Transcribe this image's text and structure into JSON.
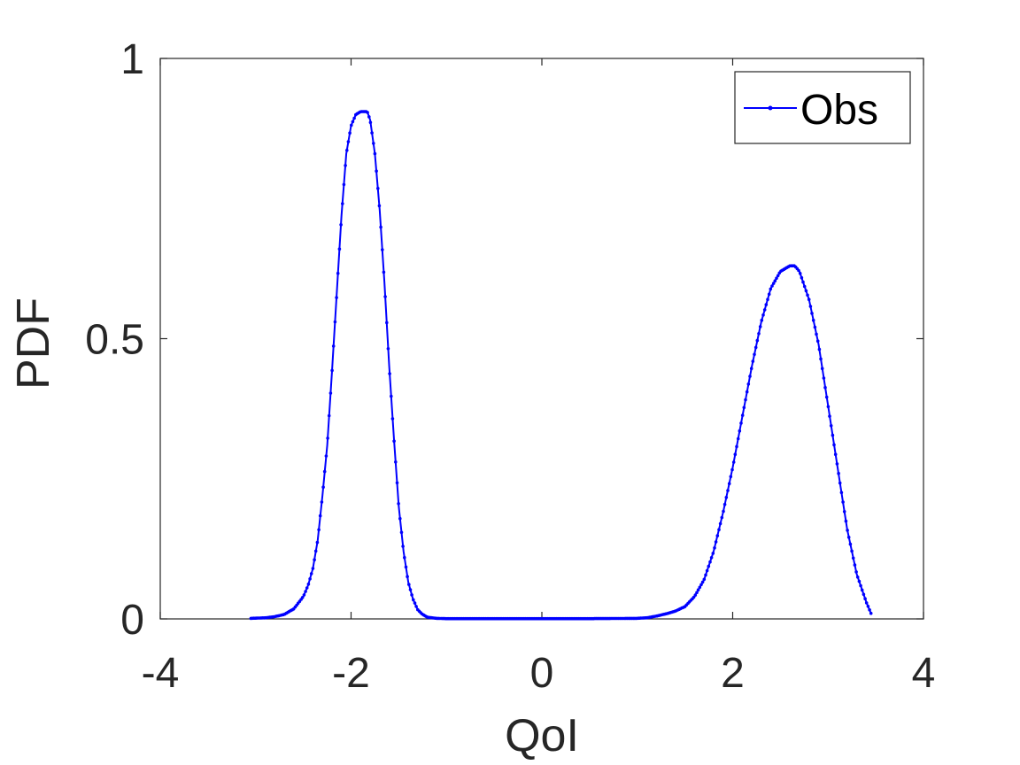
{
  "chart_data": {
    "type": "line",
    "xlabel": "QoI",
    "ylabel": "PDF",
    "xlim": [
      -4,
      4
    ],
    "ylim": [
      0,
      1
    ],
    "xticks": [
      -4,
      -2,
      0,
      2,
      4
    ],
    "xtick_labels": [
      "-4",
      "-2",
      "0",
      "2",
      "4"
    ],
    "yticks": [
      0,
      0.5,
      1
    ],
    "ytick_labels": [
      "0",
      "0.5",
      "1"
    ],
    "grid": false,
    "legend_position": "top-right",
    "colors": {
      "series": "#0000ff",
      "axes": "#262626"
    },
    "series": [
      {
        "name": "Obs",
        "marker": "dot",
        "x": [
          -3.05,
          -2.9,
          -2.8,
          -2.7,
          -2.6,
          -2.5,
          -2.45,
          -2.4,
          -2.35,
          -2.3,
          -2.25,
          -2.2,
          -2.15,
          -2.1,
          -2.05,
          -2.0,
          -1.95,
          -1.9,
          -1.85,
          -1.83,
          -1.8,
          -1.75,
          -1.7,
          -1.65,
          -1.6,
          -1.55,
          -1.5,
          -1.45,
          -1.4,
          -1.35,
          -1.3,
          -1.25,
          -1.2,
          -1.1,
          -1.0,
          -0.5,
          0.0,
          0.5,
          1.0,
          1.1,
          1.2,
          1.3,
          1.4,
          1.5,
          1.6,
          1.7,
          1.8,
          1.9,
          2.0,
          2.1,
          2.2,
          2.3,
          2.4,
          2.5,
          2.6,
          2.65,
          2.7,
          2.8,
          2.9,
          3.0,
          3.1,
          3.2,
          3.3,
          3.4,
          3.45
        ],
        "y": [
          0.001,
          0.002,
          0.004,
          0.008,
          0.018,
          0.04,
          0.06,
          0.09,
          0.14,
          0.22,
          0.31,
          0.44,
          0.58,
          0.72,
          0.83,
          0.88,
          0.9,
          0.905,
          0.905,
          0.905,
          0.89,
          0.83,
          0.73,
          0.6,
          0.45,
          0.32,
          0.2,
          0.12,
          0.065,
          0.035,
          0.016,
          0.008,
          0.003,
          0.001,
          0.0005,
          0.0005,
          0.0005,
          0.0005,
          0.001,
          0.002,
          0.005,
          0.009,
          0.014,
          0.022,
          0.04,
          0.07,
          0.12,
          0.19,
          0.27,
          0.36,
          0.45,
          0.53,
          0.59,
          0.62,
          0.63,
          0.63,
          0.62,
          0.57,
          0.49,
          0.38,
          0.27,
          0.16,
          0.08,
          0.03,
          0.01
        ]
      }
    ]
  }
}
